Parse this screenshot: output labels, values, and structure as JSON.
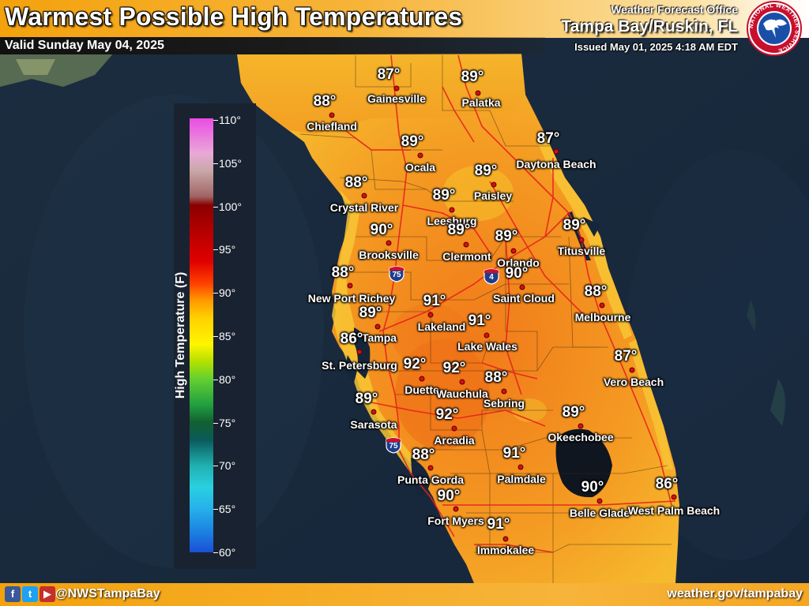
{
  "header": {
    "title": "Warmest Possible High Temperatures",
    "valid": "Valid Sunday May 04, 2025",
    "office_label": "Weather Forecast Office",
    "office_name": "Tampa Bay/Ruskin, FL",
    "issued": "Issued May 01, 2025 4:18 AM EDT",
    "logo_ring_text": "NATIONAL WEATHER SERVICE"
  },
  "legend": {
    "axis_label": "High Temperature (F)",
    "ticks": [
      "110°",
      "105°",
      "100°",
      "95°",
      "90°",
      "85°",
      "80°",
      "75°",
      "70°",
      "65°",
      "60°"
    ]
  },
  "highways": [
    "75",
    "4",
    "75"
  ],
  "cities": [
    {
      "name": "Gainesville",
      "temp": "87°"
    },
    {
      "name": "Palatka",
      "temp": "89°"
    },
    {
      "name": "Chiefland",
      "temp": "88°"
    },
    {
      "name": "Ocala",
      "temp": "89°"
    },
    {
      "name": "Daytona Beach",
      "temp": "87°"
    },
    {
      "name": "Paisley",
      "temp": "89°"
    },
    {
      "name": "Crystal River",
      "temp": "88°"
    },
    {
      "name": "Leesburg",
      "temp": "89°"
    },
    {
      "name": "Brooksville",
      "temp": "90°"
    },
    {
      "name": "Clermont",
      "temp": "89°"
    },
    {
      "name": "Orlando",
      "temp": "89°"
    },
    {
      "name": "Titusville",
      "temp": "89°"
    },
    {
      "name": "New Port Richey",
      "temp": "88°"
    },
    {
      "name": "Saint Cloud",
      "temp": "90°"
    },
    {
      "name": "Melbourne",
      "temp": "88°"
    },
    {
      "name": "Lakeland",
      "temp": "91°"
    },
    {
      "name": "Tampa",
      "temp": "89°"
    },
    {
      "name": "Lake Wales",
      "temp": "91°"
    },
    {
      "name": "St. Petersburg",
      "temp": "86°"
    },
    {
      "name": "Duette",
      "temp": "92°"
    },
    {
      "name": "Wauchula",
      "temp": "92°"
    },
    {
      "name": "Sebring",
      "temp": "88°"
    },
    {
      "name": "Vero Beach",
      "temp": "87°"
    },
    {
      "name": "Sarasota",
      "temp": "89°"
    },
    {
      "name": "Arcadia",
      "temp": "92°"
    },
    {
      "name": "Okeechobee",
      "temp": "89°"
    },
    {
      "name": "Punta Gorda",
      "temp": "88°"
    },
    {
      "name": "Palmdale",
      "temp": "91°"
    },
    {
      "name": "Fort Myers",
      "temp": "90°"
    },
    {
      "name": "Belle Glade",
      "temp": "90°"
    },
    {
      "name": "West Palm Beach",
      "temp": "86°"
    },
    {
      "name": "Immokalee",
      "temp": "91°"
    }
  ],
  "footer": {
    "handle": "@NWSTampaBay",
    "website": "weather.gov/tampabay",
    "icons": [
      "facebook-icon",
      "twitter-icon",
      "youtube-icon"
    ]
  },
  "colors": {
    "header_orange": "#f3a20d",
    "sea": "#1b2a3d",
    "city_dot": "#d41010",
    "road": "#e8211d"
  }
}
